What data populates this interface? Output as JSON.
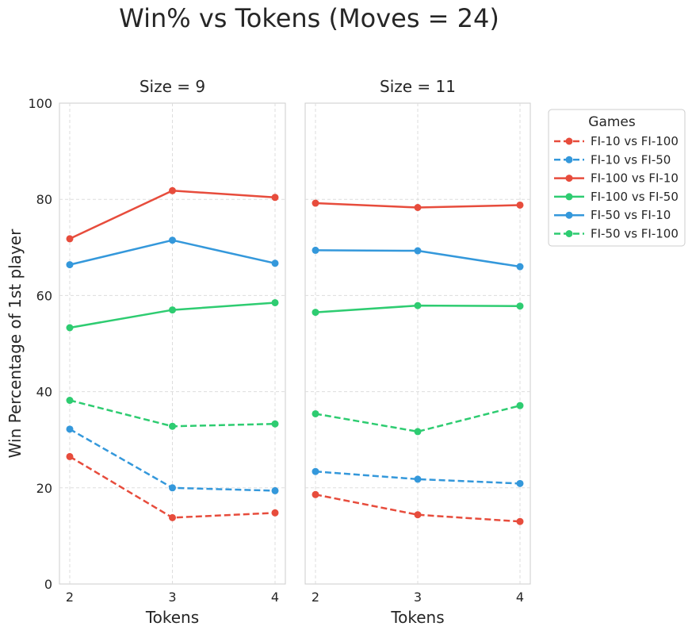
{
  "chart_data": {
    "type": "line",
    "title": "Win% vs Tokens (Moves = 24)",
    "ylabel": "Win Percentage of 1st player",
    "xlabel": "Tokens",
    "x": [
      2,
      3,
      4
    ],
    "ylim": [
      0,
      100
    ],
    "yticks": [
      0,
      20,
      40,
      60,
      80,
      100
    ],
    "grid": true,
    "legend": {
      "title": "Games",
      "placement": "outside-right"
    },
    "panels": [
      {
        "title": "Size = 9",
        "series": [
          {
            "name": "FI-10 vs FI-100",
            "color": "#e74c3c",
            "style": "dashed",
            "values": [
              26.5,
              13.8,
              14.8
            ]
          },
          {
            "name": "FI-10 vs FI-50",
            "color": "#3498db",
            "style": "dashed",
            "values": [
              32.2,
              20.0,
              19.4
            ]
          },
          {
            "name": "FI-100 vs FI-10",
            "color": "#e74c3c",
            "style": "solid",
            "values": [
              71.8,
              81.8,
              80.4
            ]
          },
          {
            "name": "FI-100 vs FI-50",
            "color": "#2ecc71",
            "style": "solid",
            "values": [
              53.3,
              57.0,
              58.5
            ]
          },
          {
            "name": "FI-50 vs FI-10",
            "color": "#3498db",
            "style": "solid",
            "values": [
              66.4,
              71.5,
              66.7
            ]
          },
          {
            "name": "FI-50 vs FI-100",
            "color": "#2ecc71",
            "style": "dashed",
            "values": [
              38.2,
              32.8,
              33.3
            ]
          }
        ]
      },
      {
        "title": "Size = 11",
        "series": [
          {
            "name": "FI-10 vs FI-100",
            "color": "#e74c3c",
            "style": "dashed",
            "values": [
              18.6,
              14.4,
              13.0
            ]
          },
          {
            "name": "FI-10 vs FI-50",
            "color": "#3498db",
            "style": "dashed",
            "values": [
              23.4,
              21.8,
              20.9
            ]
          },
          {
            "name": "FI-100 vs FI-10",
            "color": "#e74c3c",
            "style": "solid",
            "values": [
              79.2,
              78.3,
              78.8
            ]
          },
          {
            "name": "FI-100 vs FI-50",
            "color": "#2ecc71",
            "style": "solid",
            "values": [
              56.5,
              57.9,
              57.8
            ]
          },
          {
            "name": "FI-50 vs FI-10",
            "color": "#3498db",
            "style": "solid",
            "values": [
              69.4,
              69.3,
              66.0
            ]
          },
          {
            "name": "FI-50 vs FI-100",
            "color": "#2ecc71",
            "style": "dashed",
            "values": [
              35.4,
              31.7,
              37.1
            ]
          }
        ]
      }
    ]
  }
}
